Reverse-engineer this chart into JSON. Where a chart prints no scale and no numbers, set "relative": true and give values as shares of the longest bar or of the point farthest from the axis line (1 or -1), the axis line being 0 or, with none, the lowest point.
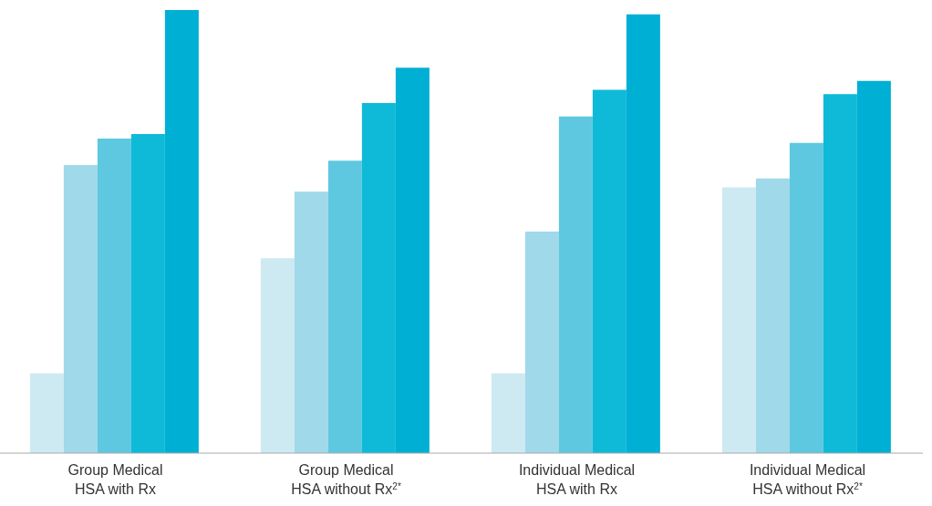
{
  "chart_data": {
    "type": "bar",
    "relative": true,
    "categories": [
      "Group Medical\nHSA with Rx",
      "Group Medical\nHSA without Rx$^{2*}$",
      "Individual Medical\nHSA with Rx",
      "Individual Medical\nHSA without Rx$^{2*}$"
    ],
    "series": [
      {
        "color": "#cdeaf2",
        "values": [
          0.18,
          0.44,
          0.18,
          0.6
        ]
      },
      {
        "color": "#9fd9ea",
        "values": [
          0.65,
          0.59,
          0.5,
          0.62
        ]
      },
      {
        "color": "#5ec8e0",
        "values": [
          0.71,
          0.66,
          0.76,
          0.7
        ]
      },
      {
        "color": "#0fbad8",
        "values": [
          0.72,
          0.79,
          0.82,
          0.81
        ]
      },
      {
        "color": "#00b0d4",
        "values": [
          1,
          0.87,
          0.99,
          0.84
        ]
      }
    ]
  }
}
